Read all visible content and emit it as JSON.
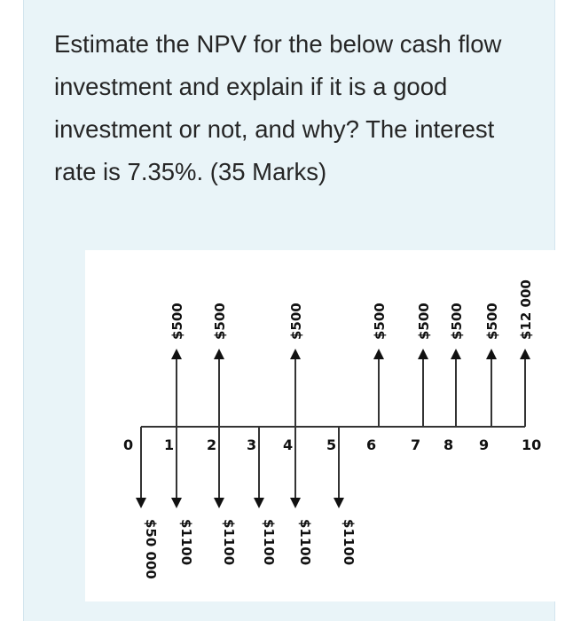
{
  "question": {
    "text": "Estimate the NPV for the below cash flow investment and explain if it is a good investment or not, and why? The interest rate is 7.35%.  (35 Marks)"
  },
  "diagram": {
    "periods": [
      "0",
      "1",
      "2",
      "3",
      "4",
      "5",
      "6",
      "7",
      "8",
      "9",
      "10"
    ],
    "inflows": [
      {
        "period": 1,
        "label": "$500"
      },
      {
        "period": 2,
        "label": "$500"
      },
      {
        "period": 4,
        "label": "$500"
      },
      {
        "period": 6,
        "label": "$500"
      },
      {
        "period": 7,
        "label": "$500"
      },
      {
        "period": 8,
        "label": "$500"
      },
      {
        "period": 9,
        "label": "$500"
      },
      {
        "period": 10,
        "label": "$12 000"
      }
    ],
    "outflows": [
      {
        "period": 0,
        "label": "$50 000"
      },
      {
        "period": 1,
        "label": "$1100"
      },
      {
        "period": 2,
        "label": "$1100"
      },
      {
        "period": 3,
        "label": "$1100"
      },
      {
        "period": 4,
        "label": "$1100"
      },
      {
        "period": 5,
        "label": "$1100"
      }
    ],
    "line_color": "#333333"
  }
}
